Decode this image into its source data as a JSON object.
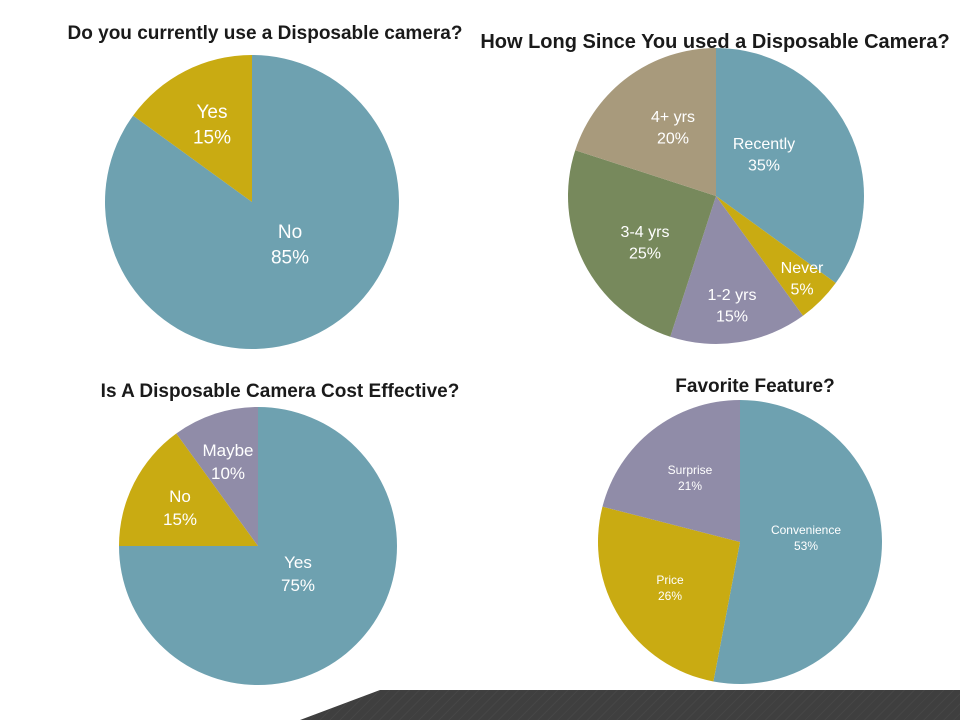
{
  "chart_data": [
    {
      "type": "pie",
      "title": "Do you currently use a Disposable camera?",
      "slices": [
        {
          "label": "No",
          "value": 85,
          "value_text": "85%",
          "color": "#6ea1b0"
        },
        {
          "label": "Yes",
          "value": 15,
          "value_text": "15%",
          "color": "#c9ab12"
        }
      ]
    },
    {
      "type": "pie",
      "title": "How Long Since You used a Disposable Camera?",
      "slices": [
        {
          "label": "Recently",
          "value": 35,
          "value_text": "35%",
          "color": "#6ea1b0"
        },
        {
          "label": "Never",
          "value": 5,
          "value_text": "5%",
          "color": "#c9ab12"
        },
        {
          "label": "1-2 yrs",
          "value": 15,
          "value_text": "15%",
          "color": "#908ca8"
        },
        {
          "label": "3-4 yrs",
          "value": 25,
          "value_text": "25%",
          "color": "#77895c"
        },
        {
          "label": "4+ yrs",
          "value": 20,
          "value_text": "20%",
          "color": "#a89a7c"
        }
      ]
    },
    {
      "type": "pie",
      "title": "Is A Disposable Camera Cost Effective?",
      "slices": [
        {
          "label": "Yes",
          "value": 75,
          "value_text": "75%",
          "color": "#6ea1b0"
        },
        {
          "label": "No",
          "value": 15,
          "value_text": "15%",
          "color": "#c9ab12"
        },
        {
          "label": "Maybe",
          "value": 10,
          "value_text": "10%",
          "color": "#908ca8"
        }
      ]
    },
    {
      "type": "pie",
      "title": "Favorite Feature?",
      "slices": [
        {
          "label": "Convenience",
          "value": 53,
          "value_text": "53%",
          "color": "#6ea1b0"
        },
        {
          "label": "Price",
          "value": 26,
          "value_text": "26%",
          "color": "#c9ab12"
        },
        {
          "label": "Surprise",
          "value": 21,
          "value_text": "21%",
          "color": "#908ca8"
        }
      ]
    }
  ]
}
